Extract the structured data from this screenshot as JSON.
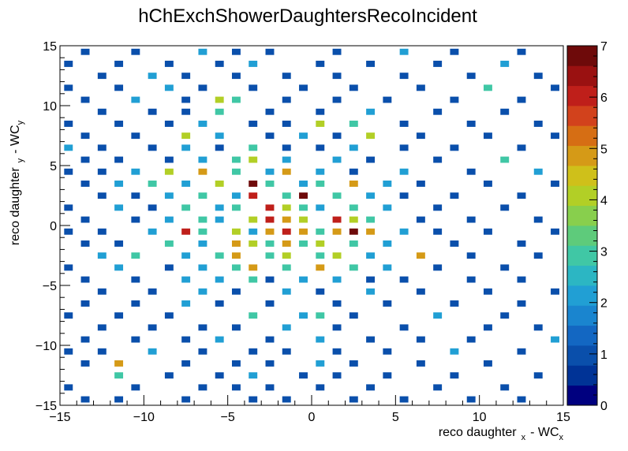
{
  "chart_data": {
    "type": "heatmap",
    "title": "hChExchShowerDaughtersRecoIncident",
    "xlabel": {
      "main": "reco daughter",
      "sub": "x",
      "tail": "- WC",
      "tail_sub": "x"
    },
    "ylabel": {
      "main": "reco daughter",
      "sub": "y",
      "tail": "- WC",
      "tail_sub": "y"
    },
    "xlim": [
      -15,
      15
    ],
    "ylim": [
      -15,
      15
    ],
    "nbins_x": 60,
    "nbins_y": 60,
    "x_ticks": [
      "−15",
      "−10",
      "−5",
      "0",
      "5",
      "10",
      "15"
    ],
    "y_ticks": [
      "−15",
      "−10",
      "−5",
      "0",
      "5",
      "10",
      "15"
    ],
    "z_range": [
      0,
      7
    ],
    "z_ticks": [
      "0",
      "1",
      "2",
      "3",
      "4",
      "5",
      "6",
      "7"
    ],
    "grid": false,
    "colorscale": [
      "#00007f",
      "#003396",
      "#0a4fab",
      "#1367c2",
      "#1a85cf",
      "#219fd4",
      "#2cb6c3",
      "#40c7a5",
      "#5ecb7b",
      "#88cf4d",
      "#b2cf26",
      "#cfc01a",
      "#d59a17",
      "#d66e14",
      "#d2421c",
      "#bf1f1a",
      "#9a1111",
      "#6e0a0a"
    ],
    "cells": [
      [
        -13.5,
        -14.5,
        1
      ],
      [
        -11.5,
        -14.5,
        1
      ],
      [
        -7.5,
        -14.5,
        1
      ],
      [
        -3.5,
        -14.5,
        1
      ],
      [
        -1.5,
        -14.5,
        1
      ],
      [
        2.5,
        -14.5,
        1
      ],
      [
        5.5,
        -14.5,
        1
      ],
      [
        9.5,
        -14.5,
        1
      ],
      [
        12.5,
        -14.5,
        1
      ],
      [
        -14.5,
        -13.5,
        1
      ],
      [
        -10.5,
        -13.5,
        1
      ],
      [
        -6.5,
        -13.5,
        1
      ],
      [
        -4.5,
        -13.5,
        1
      ],
      [
        -2.5,
        -13.5,
        1
      ],
      [
        0.5,
        -13.5,
        1
      ],
      [
        3.5,
        -13.5,
        1
      ],
      [
        7.5,
        -13.5,
        1
      ],
      [
        11.5,
        -13.5,
        1
      ],
      [
        -11.5,
        -12.5,
        3
      ],
      [
        -8.5,
        -12.5,
        1
      ],
      [
        -5.5,
        -12.5,
        1
      ],
      [
        -3.5,
        -12.5,
        2
      ],
      [
        -0.5,
        -12.5,
        1
      ],
      [
        1.5,
        -12.5,
        1
      ],
      [
        4.5,
        -12.5,
        1
      ],
      [
        8.5,
        -12.5,
        1
      ],
      [
        13.5,
        -12.5,
        1
      ],
      [
        -13.5,
        -11.5,
        1
      ],
      [
        -11.5,
        -11.5,
        5
      ],
      [
        -7.5,
        -11.5,
        1
      ],
      [
        -4.5,
        -11.5,
        1
      ],
      [
        -2.5,
        -11.5,
        1
      ],
      [
        0.5,
        -11.5,
        2
      ],
      [
        2.5,
        -11.5,
        1
      ],
      [
        6.5,
        -11.5,
        1
      ],
      [
        10.5,
        -11.5,
        1
      ],
      [
        -14.5,
        -10.5,
        1
      ],
      [
        -12.5,
        -10.5,
        1
      ],
      [
        -9.5,
        -10.5,
        2
      ],
      [
        -6.5,
        -10.5,
        1
      ],
      [
        -3.5,
        -10.5,
        1
      ],
      [
        -1.5,
        -10.5,
        1
      ],
      [
        1.5,
        -10.5,
        1
      ],
      [
        4.5,
        -10.5,
        1
      ],
      [
        8.5,
        -10.5,
        2
      ],
      [
        12.5,
        -10.5,
        1
      ],
      [
        -13.5,
        -9.5,
        1
      ],
      [
        -10.5,
        -9.5,
        1
      ],
      [
        -7.5,
        -9.5,
        1
      ],
      [
        -5.5,
        -9.5,
        2
      ],
      [
        -2.5,
        -9.5,
        1
      ],
      [
        0.5,
        -9.5,
        2
      ],
      [
        3.5,
        -9.5,
        1
      ],
      [
        6.5,
        -9.5,
        1
      ],
      [
        9.5,
        -9.5,
        1
      ],
      [
        14.5,
        -9.5,
        2
      ],
      [
        -12.5,
        -8.5,
        1
      ],
      [
        -9.5,
        -8.5,
        1
      ],
      [
        -6.5,
        -8.5,
        1
      ],
      [
        -4.5,
        -8.5,
        1
      ],
      [
        -1.5,
        -8.5,
        2
      ],
      [
        1.5,
        -8.5,
        1
      ],
      [
        5.5,
        -8.5,
        1
      ],
      [
        10.5,
        -8.5,
        1
      ],
      [
        13.5,
        -8.5,
        1
      ],
      [
        -14.5,
        -7.5,
        1
      ],
      [
        -11.5,
        -7.5,
        1
      ],
      [
        -8.5,
        -7.5,
        1
      ],
      [
        -3.5,
        -7.5,
        3
      ],
      [
        -0.5,
        -7.5,
        2
      ],
      [
        0.5,
        -7.5,
        3
      ],
      [
        2.5,
        -7.5,
        1
      ],
      [
        7.5,
        -7.5,
        2
      ],
      [
        11.5,
        -7.5,
        1
      ],
      [
        -13.5,
        -6.5,
        1
      ],
      [
        -10.5,
        -6.5,
        1
      ],
      [
        -7.5,
        -6.5,
        2
      ],
      [
        -5.5,
        -6.5,
        1
      ],
      [
        -2.5,
        -6.5,
        1
      ],
      [
        1.5,
        -6.5,
        1
      ],
      [
        4.5,
        -6.5,
        1
      ],
      [
        8.5,
        -6.5,
        1
      ],
      [
        12.5,
        -6.5,
        1
      ],
      [
        -12.5,
        -5.5,
        1
      ],
      [
        -9.5,
        -5.5,
        1
      ],
      [
        -6.5,
        -5.5,
        2
      ],
      [
        -4.5,
        -5.5,
        1
      ],
      [
        -1.5,
        -5.5,
        2
      ],
      [
        0.5,
        -5.5,
        1
      ],
      [
        3.5,
        -5.5,
        2
      ],
      [
        6.5,
        -5.5,
        1
      ],
      [
        10.5,
        -5.5,
        1
      ],
      [
        14.5,
        -5.5,
        1
      ],
      [
        -13.5,
        -4.5,
        1
      ],
      [
        -10.5,
        -4.5,
        1
      ],
      [
        -7.5,
        -4.5,
        2
      ],
      [
        -5.5,
        -4.5,
        2
      ],
      [
        -3.5,
        -4.5,
        3
      ],
      [
        -2.5,
        -4.5,
        1
      ],
      [
        -0.5,
        -4.5,
        2
      ],
      [
        1.5,
        -4.5,
        2
      ],
      [
        3.5,
        -4.5,
        1
      ],
      [
        5.5,
        -4.5,
        1
      ],
      [
        9.5,
        -4.5,
        1
      ],
      [
        12.5,
        -4.5,
        1
      ],
      [
        -14.5,
        -3.5,
        1
      ],
      [
        -11.5,
        -3.5,
        2
      ],
      [
        -8.5,
        -3.5,
        1
      ],
      [
        -6.5,
        -3.5,
        2
      ],
      [
        -4.5,
        -3.5,
        3
      ],
      [
        -3.5,
        -3.5,
        5
      ],
      [
        -1.5,
        -3.5,
        3
      ],
      [
        0.5,
        -3.5,
        5
      ],
      [
        2.5,
        -3.5,
        3
      ],
      [
        4.5,
        -3.5,
        2
      ],
      [
        7.5,
        -3.5,
        1
      ],
      [
        11.5,
        -3.5,
        1
      ],
      [
        -12.5,
        -2.5,
        2
      ],
      [
        -10.5,
        -2.5,
        3
      ],
      [
        -7.5,
        -2.5,
        2
      ],
      [
        -5.5,
        -2.5,
        3
      ],
      [
        -4.5,
        -2.5,
        5
      ],
      [
        -2.5,
        -2.5,
        3
      ],
      [
        -1.5,
        -2.5,
        4
      ],
      [
        0.5,
        -2.5,
        3
      ],
      [
        1.5,
        -2.5,
        4
      ],
      [
        3.5,
        -2.5,
        2
      ],
      [
        6.5,
        -2.5,
        5
      ],
      [
        9.5,
        -2.5,
        1
      ],
      [
        13.5,
        -2.5,
        1
      ],
      [
        -13.5,
        -1.5,
        1
      ],
      [
        -11.5,
        -1.5,
        1
      ],
      [
        -8.5,
        -1.5,
        3
      ],
      [
        -6.5,
        -1.5,
        2
      ],
      [
        -4.5,
        -1.5,
        5
      ],
      [
        -3.5,
        -1.5,
        4
      ],
      [
        -2.5,
        -1.5,
        3
      ],
      [
        -1.5,
        -1.5,
        5
      ],
      [
        -0.5,
        -1.5,
        3
      ],
      [
        0.5,
        -1.5,
        4
      ],
      [
        2.5,
        -1.5,
        3
      ],
      [
        4.5,
        -1.5,
        2
      ],
      [
        8.5,
        -1.5,
        1
      ],
      [
        12.5,
        -1.5,
        1
      ],
      [
        -14.5,
        -0.5,
        1
      ],
      [
        -12.5,
        -0.5,
        1
      ],
      [
        -9.5,
        -0.5,
        2
      ],
      [
        -7.5,
        -0.5,
        6
      ],
      [
        -6.5,
        -0.5,
        3
      ],
      [
        -4.5,
        -0.5,
        4
      ],
      [
        -3.5,
        -0.5,
        2
      ],
      [
        -2.5,
        -0.5,
        5
      ],
      [
        -1.5,
        -0.5,
        6
      ],
      [
        -0.5,
        -0.5,
        5
      ],
      [
        0.5,
        -0.5,
        3
      ],
      [
        1.5,
        -0.5,
        5
      ],
      [
        2.5,
        -0.5,
        7
      ],
      [
        3.5,
        -0.5,
        5
      ],
      [
        5.5,
        -0.5,
        2
      ],
      [
        7.5,
        -0.5,
        1
      ],
      [
        10.5,
        -0.5,
        1
      ],
      [
        14.5,
        -0.5,
        1
      ],
      [
        -13.5,
        0.5,
        1
      ],
      [
        -10.5,
        0.5,
        1
      ],
      [
        -8.5,
        0.5,
        2
      ],
      [
        -6.5,
        0.5,
        3
      ],
      [
        -5.5,
        0.5,
        2
      ],
      [
        -3.5,
        0.5,
        4
      ],
      [
        -2.5,
        0.5,
        6
      ],
      [
        -1.5,
        0.5,
        5
      ],
      [
        -0.5,
        0.5,
        4
      ],
      [
        1.5,
        0.5,
        6
      ],
      [
        2.5,
        0.5,
        4
      ],
      [
        3.5,
        0.5,
        3
      ],
      [
        6.5,
        0.5,
        1
      ],
      [
        9.5,
        0.5,
        1
      ],
      [
        13.5,
        0.5,
        1
      ],
      [
        -14.5,
        1.5,
        1
      ],
      [
        -11.5,
        1.5,
        2
      ],
      [
        -9.5,
        1.5,
        1
      ],
      [
        -7.5,
        1.5,
        3
      ],
      [
        -5.5,
        1.5,
        2
      ],
      [
        -4.5,
        1.5,
        3
      ],
      [
        -2.5,
        1.5,
        6
      ],
      [
        -1.5,
        1.5,
        4
      ],
      [
        -0.5,
        1.5,
        3
      ],
      [
        0.5,
        1.5,
        2
      ],
      [
        2.5,
        1.5,
        3
      ],
      [
        4.5,
        1.5,
        2
      ],
      [
        7.5,
        1.5,
        1
      ],
      [
        11.5,
        1.5,
        1
      ],
      [
        -12.5,
        2.5,
        1
      ],
      [
        -10.5,
        2.5,
        1
      ],
      [
        -8.5,
        2.5,
        2
      ],
      [
        -6.5,
        2.5,
        3
      ],
      [
        -4.5,
        2.5,
        2
      ],
      [
        -3.5,
        2.5,
        6
      ],
      [
        -1.5,
        2.5,
        3
      ],
      [
        -0.5,
        2.5,
        7
      ],
      [
        1.5,
        2.5,
        3
      ],
      [
        3.5,
        2.5,
        2
      ],
      [
        5.5,
        2.5,
        1
      ],
      [
        8.5,
        2.5,
        1
      ],
      [
        12.5,
        2.5,
        1
      ],
      [
        -13.5,
        3.5,
        1
      ],
      [
        -11.5,
        3.5,
        2
      ],
      [
        -9.5,
        3.5,
        3
      ],
      [
        -7.5,
        3.5,
        2
      ],
      [
        -5.5,
        3.5,
        4
      ],
      [
        -3.5,
        3.5,
        7
      ],
      [
        -2.5,
        3.5,
        3
      ],
      [
        -0.5,
        3.5,
        2
      ],
      [
        0.5,
        3.5,
        3
      ],
      [
        2.5,
        3.5,
        5
      ],
      [
        4.5,
        3.5,
        2
      ],
      [
        6.5,
        3.5,
        1
      ],
      [
        10.5,
        3.5,
        1
      ],
      [
        14.5,
        3.5,
        1
      ],
      [
        -14.5,
        4.5,
        1
      ],
      [
        -12.5,
        4.5,
        1
      ],
      [
        -10.5,
        4.5,
        2
      ],
      [
        -8.5,
        4.5,
        4
      ],
      [
        -6.5,
        4.5,
        5
      ],
      [
        -4.5,
        4.5,
        3
      ],
      [
        -2.5,
        4.5,
        2
      ],
      [
        -1.5,
        4.5,
        5
      ],
      [
        0.5,
        4.5,
        2
      ],
      [
        2.5,
        4.5,
        1
      ],
      [
        5.5,
        4.5,
        2
      ],
      [
        9.5,
        4.5,
        1
      ],
      [
        13.5,
        4.5,
        2
      ],
      [
        -13.5,
        5.5,
        1
      ],
      [
        -11.5,
        5.5,
        1
      ],
      [
        -8.5,
        5.5,
        1
      ],
      [
        -6.5,
        5.5,
        2
      ],
      [
        -4.5,
        5.5,
        3
      ],
      [
        -3.5,
        5.5,
        4
      ],
      [
        -1.5,
        5.5,
        2
      ],
      [
        1.5,
        5.5,
        2
      ],
      [
        3.5,
        5.5,
        1
      ],
      [
        7.5,
        5.5,
        1
      ],
      [
        11.5,
        5.5,
        3
      ],
      [
        -14.5,
        6.5,
        2
      ],
      [
        -12.5,
        6.5,
        1
      ],
      [
        -9.5,
        6.5,
        1
      ],
      [
        -7.5,
        6.5,
        2
      ],
      [
        -5.5,
        6.5,
        1
      ],
      [
        -3.5,
        6.5,
        3
      ],
      [
        -1.5,
        6.5,
        1
      ],
      [
        0.5,
        6.5,
        1
      ],
      [
        2.5,
        6.5,
        2
      ],
      [
        5.5,
        6.5,
        1
      ],
      [
        8.5,
        6.5,
        1
      ],
      [
        12.5,
        6.5,
        1
      ],
      [
        -13.5,
        7.5,
        1
      ],
      [
        -10.5,
        7.5,
        1
      ],
      [
        -7.5,
        7.5,
        4
      ],
      [
        -5.5,
        7.5,
        2
      ],
      [
        -2.5,
        7.5,
        1
      ],
      [
        -0.5,
        7.5,
        2
      ],
      [
        1.5,
        7.5,
        1
      ],
      [
        3.5,
        7.5,
        4
      ],
      [
        6.5,
        7.5,
        1
      ],
      [
        10.5,
        7.5,
        1
      ],
      [
        14.5,
        7.5,
        1
      ],
      [
        -14.5,
        8.5,
        1
      ],
      [
        -11.5,
        8.5,
        1
      ],
      [
        -8.5,
        8.5,
        1
      ],
      [
        -6.5,
        8.5,
        2
      ],
      [
        -3.5,
        8.5,
        1
      ],
      [
        -1.5,
        8.5,
        1
      ],
      [
        0.5,
        8.5,
        4
      ],
      [
        2.5,
        8.5,
        3
      ],
      [
        5.5,
        8.5,
        1
      ],
      [
        9.5,
        8.5,
        1
      ],
      [
        13.5,
        8.5,
        1
      ],
      [
        -12.5,
        9.5,
        1
      ],
      [
        -9.5,
        9.5,
        1
      ],
      [
        -7.5,
        9.5,
        1
      ],
      [
        -5.5,
        9.5,
        3
      ],
      [
        -2.5,
        9.5,
        1
      ],
      [
        0.5,
        9.5,
        1
      ],
      [
        3.5,
        9.5,
        2
      ],
      [
        7.5,
        9.5,
        1
      ],
      [
        11.5,
        9.5,
        1
      ],
      [
        -13.5,
        10.5,
        1
      ],
      [
        -10.5,
        10.5,
        2
      ],
      [
        -7.5,
        10.5,
        1
      ],
      [
        -5.5,
        10.5,
        4
      ],
      [
        -4.5,
        10.5,
        3
      ],
      [
        -1.5,
        10.5,
        1
      ],
      [
        1.5,
        10.5,
        1
      ],
      [
        4.5,
        10.5,
        1
      ],
      [
        8.5,
        10.5,
        1
      ],
      [
        12.5,
        10.5,
        1
      ],
      [
        -14.5,
        11.5,
        1
      ],
      [
        -11.5,
        11.5,
        1
      ],
      [
        -8.5,
        11.5,
        2
      ],
      [
        -6.5,
        11.5,
        1
      ],
      [
        -3.5,
        11.5,
        1
      ],
      [
        -0.5,
        11.5,
        1
      ],
      [
        2.5,
        11.5,
        1
      ],
      [
        6.5,
        11.5,
        1
      ],
      [
        10.5,
        11.5,
        3
      ],
      [
        14.5,
        11.5,
        1
      ],
      [
        -12.5,
        12.5,
        1
      ],
      [
        -9.5,
        12.5,
        2
      ],
      [
        -7.5,
        12.5,
        1
      ],
      [
        -4.5,
        12.5,
        1
      ],
      [
        -1.5,
        12.5,
        1
      ],
      [
        1.5,
        12.5,
        1
      ],
      [
        5.5,
        12.5,
        1
      ],
      [
        9.5,
        12.5,
        1
      ],
      [
        13.5,
        12.5,
        1
      ],
      [
        -14.5,
        13.5,
        1
      ],
      [
        -11.5,
        13.5,
        1
      ],
      [
        -8.5,
        13.5,
        1
      ],
      [
        -5.5,
        13.5,
        1
      ],
      [
        -3.5,
        13.5,
        2
      ],
      [
        0.5,
        13.5,
        1
      ],
      [
        3.5,
        13.5,
        1
      ],
      [
        7.5,
        13.5,
        1
      ],
      [
        11.5,
        13.5,
        2
      ],
      [
        -13.5,
        14.5,
        1
      ],
      [
        -10.5,
        14.5,
        1
      ],
      [
        -6.5,
        14.5,
        2
      ],
      [
        -4.5,
        14.5,
        1
      ],
      [
        -2.5,
        14.5,
        1
      ],
      [
        1.5,
        14.5,
        1
      ],
      [
        5.5,
        14.5,
        2
      ],
      [
        8.5,
        14.5,
        1
      ],
      [
        12.5,
        14.5,
        1
      ]
    ]
  }
}
